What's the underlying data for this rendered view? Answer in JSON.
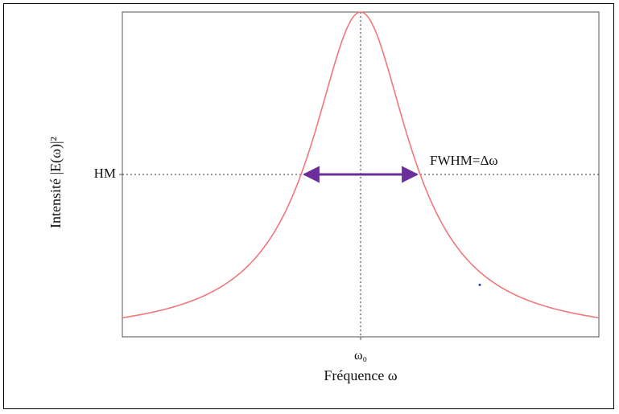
{
  "chart_data": {
    "type": "line",
    "title": "",
    "xlabel": "Fréquence ω",
    "ylabel": "Intensité |E(ω)|²",
    "x_ticks": [
      {
        "x": 0,
        "label": "ω₀"
      }
    ],
    "y_ticks": [
      {
        "y": 0.5,
        "label": "HM"
      }
    ],
    "xlim": [
      -4,
      4
    ],
    "ylim": [
      0,
      1
    ],
    "grid": false,
    "series": [
      {
        "center": 0,
        "half_width": 1,
        "peak": 1,
        "color": "#f0787a",
        "x": [
          -4,
          -3.5,
          -3,
          -2.5,
          -2,
          -1.5,
          -1.25,
          -1,
          -0.75,
          -0.5,
          -0.25,
          0,
          0.25,
          0.5,
          0.75,
          1,
          1.25,
          1.5,
          2,
          2.5,
          3,
          3.5,
          4
        ],
        "y": [
          0.059,
          0.075,
          0.1,
          0.138,
          0.2,
          0.308,
          0.39,
          0.5,
          0.64,
          0.8,
          0.941,
          1,
          0.941,
          0.8,
          0.64,
          0.5,
          0.39,
          0.308,
          0.2,
          0.138,
          0.1,
          0.075,
          0.059
        ]
      }
    ],
    "reference_lines": {
      "horizontal_y": 0.5,
      "vertical_x": 0,
      "style": "dotted",
      "color": "#333333"
    },
    "annotations": [
      {
        "text": "FWHM=Δω",
        "type": "double-arrow",
        "from_x": -1,
        "to_x": 1,
        "y": 0.5,
        "color": "#6a2f9a"
      }
    ],
    "stray_dot": {
      "x": 2,
      "y": 0.16,
      "color": "#1f3fbf"
    }
  }
}
